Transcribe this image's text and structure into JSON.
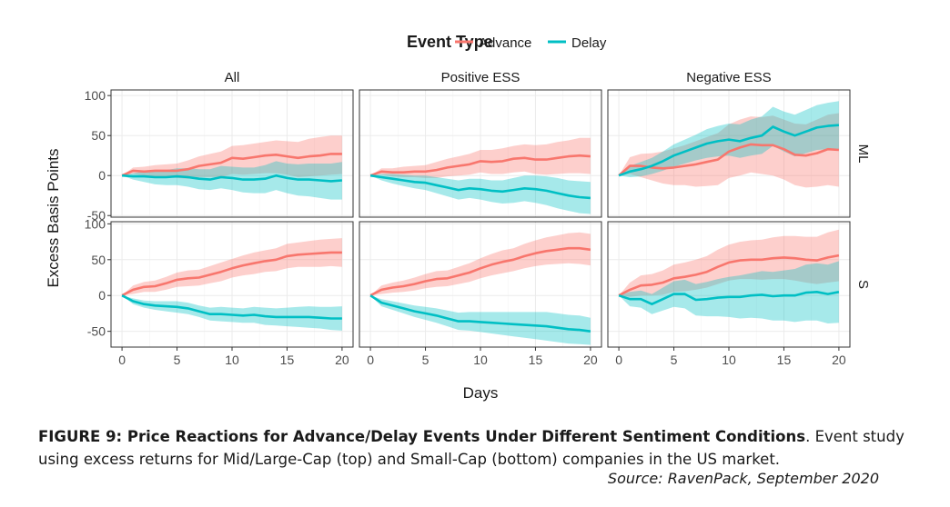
{
  "colors": {
    "advance": "#F8766D",
    "delay": "#00BFC4",
    "strip": "#ffffff",
    "grid": "#ebebeb",
    "panel_border": "#333333"
  },
  "legend": {
    "title": "Event Type",
    "items": [
      "Advance",
      "Delay"
    ]
  },
  "caption": {
    "bold": "FIGURE 9: Price Reactions for Advance/Delay Events Under Different Sentiment Conditions",
    "text": ". Event study using excess returns for Mid/Large-Cap (top) and Small-Cap (bottom) companies in the US market.",
    "source": "Source: RavenPack, September 2020"
  },
  "chart_data": {
    "type": "line",
    "xlabel": "Days",
    "ylabel": "Excess Basis Points",
    "columns": [
      "All",
      "Positive ESS",
      "Negative ESS"
    ],
    "rows": [
      "ML",
      "S"
    ],
    "x": [
      0,
      1,
      2,
      3,
      4,
      5,
      6,
      7,
      8,
      9,
      10,
      11,
      12,
      13,
      14,
      15,
      16,
      17,
      18,
      19,
      20
    ],
    "xticks": [
      0,
      5,
      10,
      15,
      20
    ],
    "xlim": [
      -1,
      21
    ],
    "row_axes": {
      "ML": {
        "ylim": [
          -52,
          107
        ],
        "ticks": [
          100,
          50,
          0,
          -50
        ]
      },
      "S": {
        "ylim": [
          -72,
          103
        ],
        "ticks": [
          100,
          50,
          0,
          -50
        ]
      }
    },
    "grid": true,
    "legend_position": "top",
    "panels": [
      {
        "row": "ML",
        "col": "All",
        "series": [
          {
            "name": "Advance",
            "values": [
              0,
              6,
              5,
              6,
              6,
              6,
              8,
              12,
              14,
              16,
              22,
              21,
              23,
              25,
              26,
              24,
              22,
              24,
              25,
              27,
              27
            ],
            "lower": [
              0,
              2,
              0,
              -1,
              -2,
              -3,
              -4,
              -2,
              -2,
              -2,
              2,
              1,
              2,
              3,
              3,
              1,
              -2,
              -1,
              0,
              1,
              2
            ],
            "upper": [
              0,
              10,
              11,
              13,
              14,
              15,
              19,
              24,
              27,
              30,
              37,
              38,
              40,
              42,
              44,
              43,
              42,
              46,
              48,
              50,
              50
            ]
          },
          {
            "name": "Delay",
            "values": [
              0,
              -1,
              -1,
              -2,
              -2,
              -1,
              -2,
              -4,
              -5,
              -2,
              -3,
              -5,
              -5,
              -4,
              0,
              -3,
              -5,
              -5,
              -6,
              -7,
              -6
            ],
            "lower": [
              0,
              -5,
              -8,
              -11,
              -12,
              -12,
              -14,
              -17,
              -18,
              -16,
              -18,
              -21,
              -22,
              -22,
              -18,
              -22,
              -25,
              -26,
              -28,
              -30,
              -30
            ],
            "upper": [
              0,
              3,
              5,
              6,
              7,
              9,
              9,
              8,
              8,
              12,
              11,
              10,
              10,
              13,
              18,
              15,
              14,
              15,
              15,
              15,
              17
            ]
          }
        ]
      },
      {
        "row": "ML",
        "col": "Positive ESS",
        "series": [
          {
            "name": "Advance",
            "values": [
              0,
              5,
              4,
              4,
              5,
              5,
              7,
              10,
              12,
              14,
              18,
              17,
              18,
              21,
              22,
              20,
              20,
              22,
              24,
              25,
              24
            ],
            "lower": [
              0,
              1,
              -1,
              -2,
              -2,
              -3,
              -3,
              -1,
              0,
              1,
              4,
              2,
              2,
              4,
              5,
              2,
              1,
              2,
              3,
              3,
              2
            ],
            "upper": [
              0,
              9,
              9,
              11,
              12,
              13,
              17,
              21,
              24,
              27,
              32,
              32,
              34,
              37,
              39,
              38,
              39,
              42,
              44,
              47,
              47
            ]
          },
          {
            "name": "Delay",
            "values": [
              0,
              -2,
              -4,
              -6,
              -8,
              -9,
              -12,
              -15,
              -18,
              -16,
              -17,
              -19,
              -20,
              -18,
              -16,
              -17,
              -19,
              -22,
              -25,
              -27,
              -28
            ],
            "lower": [
              0,
              -6,
              -10,
              -13,
              -16,
              -18,
              -22,
              -26,
              -30,
              -28,
              -30,
              -33,
              -35,
              -34,
              -32,
              -34,
              -37,
              -41,
              -44,
              -47,
              -48
            ],
            "upper": [
              0,
              2,
              2,
              1,
              0,
              0,
              -2,
              -4,
              -6,
              -4,
              -4,
              -6,
              -6,
              -3,
              0,
              0,
              -1,
              -3,
              -6,
              -7,
              -8
            ]
          }
        ]
      },
      {
        "row": "ML",
        "col": "Negative ESS",
        "series": [
          {
            "name": "Advance",
            "values": [
              0,
              12,
              12,
              10,
              9,
              10,
              12,
              14,
              17,
              20,
              30,
              35,
              39,
              38,
              38,
              33,
              26,
              25,
              28,
              33,
              32
            ],
            "lower": [
              0,
              2,
              -2,
              -6,
              -10,
              -12,
              -12,
              -14,
              -13,
              -12,
              -3,
              0,
              4,
              2,
              0,
              -5,
              -12,
              -15,
              -14,
              -12,
              -14
            ],
            "upper": [
              0,
              23,
              27,
              28,
              30,
              34,
              38,
              43,
              48,
              53,
              64,
              70,
              74,
              73,
              75,
              70,
              65,
              64,
              70,
              76,
              78
            ]
          },
          {
            "name": "Delay",
            "values": [
              0,
              5,
              8,
              12,
              18,
              25,
              30,
              35,
              40,
              43,
              45,
              43,
              47,
              50,
              61,
              55,
              50,
              55,
              60,
              62,
              63
            ],
            "lower": [
              0,
              -2,
              -1,
              2,
              6,
              11,
              15,
              19,
              22,
              24,
              25,
              22,
              25,
              27,
              37,
              30,
              24,
              28,
              32,
              33,
              33
            ],
            "upper": [
              0,
              12,
              17,
              22,
              30,
              39,
              45,
              51,
              58,
              62,
              65,
              64,
              70,
              74,
              86,
              80,
              76,
              82,
              88,
              91,
              93
            ]
          }
        ]
      },
      {
        "row": "S",
        "col": "All",
        "series": [
          {
            "name": "Advance",
            "values": [
              0,
              8,
              12,
              13,
              17,
              22,
              24,
              25,
              29,
              33,
              38,
              42,
              45,
              48,
              50,
              55,
              57,
              58,
              59,
              60,
              60
            ],
            "lower": [
              0,
              2,
              5,
              5,
              8,
              12,
              13,
              14,
              17,
              20,
              25,
              28,
              30,
              33,
              34,
              38,
              40,
              40,
              40,
              41,
              40
            ],
            "upper": [
              0,
              14,
              19,
              21,
              26,
              32,
              35,
              36,
              41,
              46,
              51,
              56,
              60,
              63,
              66,
              72,
              74,
              76,
              78,
              79,
              80
            ]
          },
          {
            "name": "Delay",
            "values": [
              0,
              -8,
              -12,
              -14,
              -15,
              -16,
              -18,
              -22,
              -26,
              -26,
              -27,
              -28,
              -27,
              -29,
              -30,
              -30,
              -30,
              -30,
              -31,
              -32,
              -32
            ],
            "lower": [
              0,
              -12,
              -17,
              -20,
              -22,
              -24,
              -26,
              -30,
              -35,
              -36,
              -37,
              -38,
              -38,
              -41,
              -42,
              -43,
              -44,
              -45,
              -46,
              -48,
              -49
            ],
            "upper": [
              0,
              -4,
              -7,
              -8,
              -8,
              -8,
              -10,
              -14,
              -17,
              -16,
              -17,
              -18,
              -16,
              -17,
              -18,
              -17,
              -16,
              -15,
              -16,
              -16,
              -15
            ]
          }
        ]
      },
      {
        "row": "S",
        "col": "Positive ESS",
        "series": [
          {
            "name": "Advance",
            "values": [
              0,
              8,
              11,
              13,
              16,
              20,
              23,
              24,
              28,
              32,
              38,
              43,
              47,
              50,
              55,
              59,
              62,
              64,
              66,
              66,
              64
            ],
            "lower": [
              0,
              2,
              4,
              5,
              7,
              10,
              12,
              13,
              16,
              19,
              24,
              28,
              31,
              34,
              38,
              41,
              43,
              44,
              45,
              44,
              42
            ],
            "upper": [
              0,
              14,
              18,
              21,
              25,
              30,
              34,
              35,
              40,
              45,
              52,
              58,
              63,
              66,
              72,
              77,
              81,
              84,
              87,
              88,
              86
            ]
          },
          {
            "name": "Delay",
            "values": [
              0,
              -10,
              -14,
              -18,
              -22,
              -25,
              -28,
              -32,
              -36,
              -36,
              -37,
              -38,
              -39,
              -40,
              -41,
              -42,
              -43,
              -45,
              -47,
              -48,
              -50
            ],
            "lower": [
              0,
              -15,
              -20,
              -25,
              -30,
              -34,
              -38,
              -43,
              -48,
              -49,
              -51,
              -53,
              -55,
              -57,
              -59,
              -61,
              -63,
              -65,
              -67,
              -68,
              -69
            ],
            "upper": [
              0,
              -5,
              -8,
              -11,
              -14,
              -16,
              -18,
              -21,
              -24,
              -23,
              -23,
              -23,
              -23,
              -23,
              -23,
              -23,
              -23,
              -25,
              -27,
              -28,
              -31
            ]
          }
        ]
      },
      {
        "row": "S",
        "col": "Negative ESS",
        "series": [
          {
            "name": "Advance",
            "values": [
              0,
              8,
              14,
              15,
              18,
              24,
              26,
              29,
              33,
              40,
              46,
              49,
              50,
              50,
              52,
              53,
              52,
              50,
              49,
              53,
              56
            ],
            "lower": [
              0,
              -2,
              0,
              0,
              1,
              5,
              6,
              8,
              11,
              16,
              21,
              23,
              23,
              22,
              23,
              23,
              21,
              18,
              16,
              18,
              20
            ],
            "upper": [
              0,
              18,
              28,
              30,
              35,
              43,
              46,
              50,
              55,
              64,
              71,
              75,
              77,
              78,
              81,
              83,
              83,
              82,
              82,
              88,
              92
            ]
          },
          {
            "name": "Delay",
            "values": [
              0,
              -5,
              -5,
              -12,
              -5,
              2,
              2,
              -6,
              -5,
              -3,
              -2,
              -2,
              0,
              1,
              -1,
              0,
              0,
              4,
              5,
              2,
              5
            ],
            "lower": [
              0,
              -15,
              -17,
              -26,
              -21,
              -16,
              -18,
              -28,
              -29,
              -29,
              -30,
              -32,
              -31,
              -32,
              -35,
              -35,
              -37,
              -35,
              -35,
              -39,
              -38
            ],
            "upper": [
              0,
              5,
              7,
              2,
              11,
              20,
              22,
              16,
              19,
              23,
              26,
              28,
              31,
              34,
              33,
              35,
              37,
              43,
              45,
              43,
              48
            ]
          }
        ]
      }
    ]
  }
}
